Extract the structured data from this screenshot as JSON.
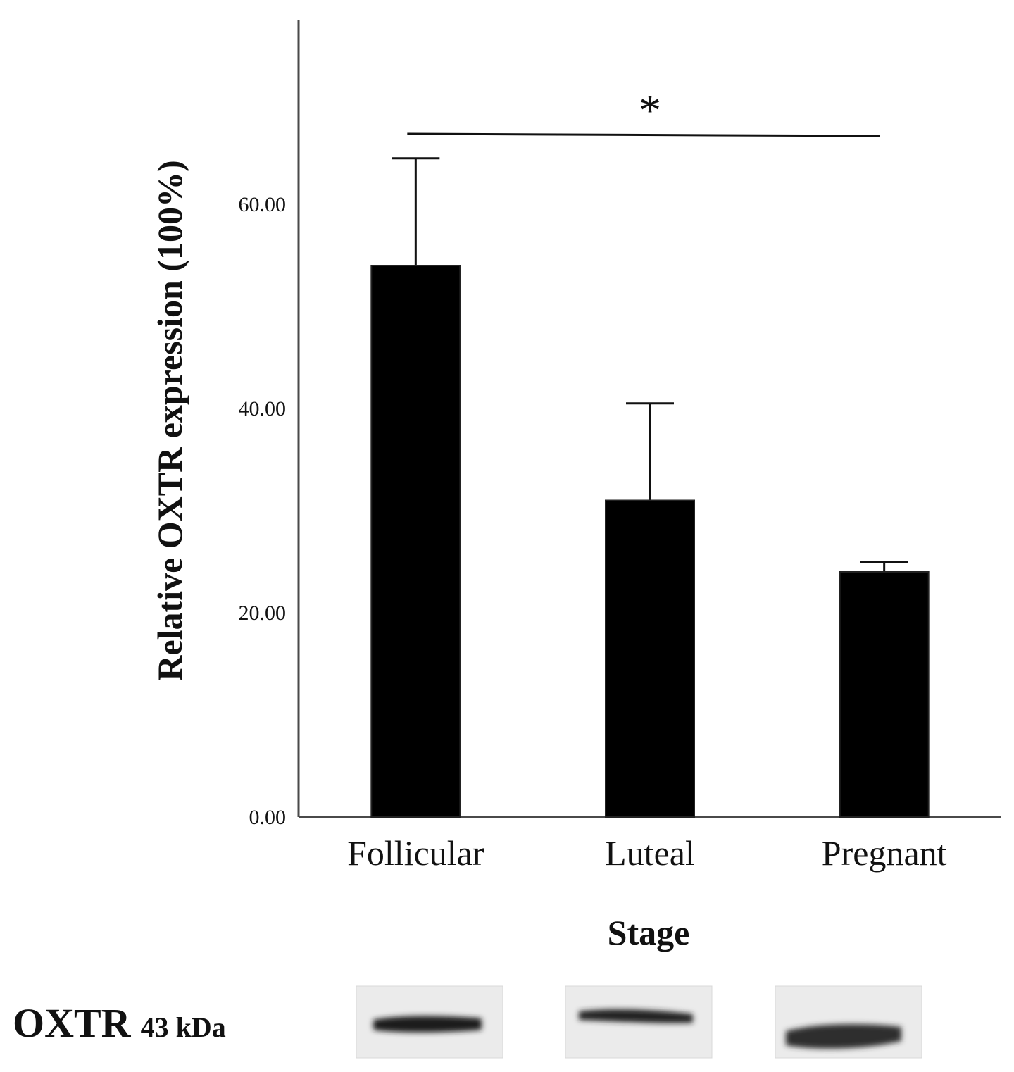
{
  "chart_data": {
    "type": "bar",
    "categories": [
      "Follicular",
      "Luteal",
      "Pregnant"
    ],
    "values": [
      54.0,
      31.0,
      24.0
    ],
    "error_upper": [
      64.5,
      40.5,
      25.0
    ],
    "xlabel": "Stage",
    "ylabel": "Relative OXTR expression (100%)",
    "yticks": [
      "0.00",
      "20.00",
      "40.00",
      "60.00"
    ],
    "ylim": [
      0,
      78
    ],
    "grid": false,
    "significance": {
      "label": "*",
      "from": "Follicular",
      "to": "Pregnant"
    },
    "bar_color": "#000000"
  },
  "blot": {
    "protein": "OXTR",
    "size": "43 kDa",
    "lanes": [
      "Follicular",
      "Luteal",
      "Pregnant"
    ]
  }
}
